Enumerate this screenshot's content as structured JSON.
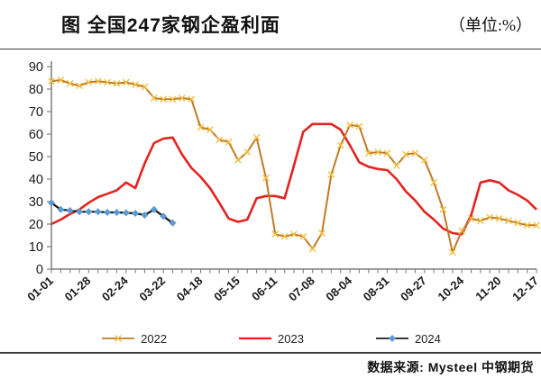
{
  "header": {
    "title": "图 全国247家钢企盈利面",
    "unit": "（单位:%）"
  },
  "footer": {
    "source": "数据来源: Mysteel 中钢期货"
  },
  "legend": {
    "items": [
      {
        "label": "2022",
        "marker": "x"
      },
      {
        "label": "2023",
        "marker": "none"
      },
      {
        "label": "2024",
        "marker": "diamond"
      }
    ]
  },
  "colors": {
    "s2022_line": "#bf7a26",
    "s2022_marker": "#f1bf3e",
    "s2023_line": "#e42320",
    "s2024_line": "#1b1b1b",
    "s2024_marker": "#5b9bd5",
    "axis": "#7f7f7f",
    "tick_text": "#1a1a1a"
  },
  "chart_data": {
    "type": "line",
    "title": "全国247家钢企盈利面",
    "unit": "%",
    "ylim": [
      0,
      90
    ],
    "y_ticks": [
      0,
      10,
      20,
      30,
      40,
      50,
      60,
      70,
      80,
      90
    ],
    "weeks_total": 53,
    "x_tick_labels": [
      "01-01",
      "01-28",
      "02-24",
      "03-22",
      "04-18",
      "05-15",
      "06-11",
      "07-08",
      "08-04",
      "08-31",
      "09-27",
      "10-24",
      "11-20",
      "12-17"
    ],
    "x_tick_label_weeks": [
      0,
      4,
      8,
      12,
      16,
      20,
      24,
      28,
      32,
      36,
      40,
      44,
      48,
      52
    ],
    "grid": false,
    "legend_position": "bottom",
    "series": [
      {
        "name": "2022",
        "marker": "x",
        "values": [
          83.5,
          84,
          82.5,
          81.5,
          83,
          83.5,
          83,
          82.5,
          83,
          82,
          81,
          76,
          75.5,
          75.5,
          76,
          75.5,
          63,
          62,
          57.5,
          56.5,
          48.5,
          52,
          58.5,
          40.5,
          15.5,
          14.5,
          15.5,
          14.5,
          9,
          16,
          42,
          55,
          64,
          63.5,
          51.5,
          52,
          51.5,
          46,
          51,
          51.5,
          48.5,
          38.5,
          26.5,
          7.5,
          17,
          22.5,
          21.5,
          23,
          22.5,
          21.5,
          20.5,
          19.5,
          19.5
        ]
      },
      {
        "name": "2023",
        "marker": "none",
        "values": [
          20,
          22,
          24.5,
          26.5,
          29.5,
          32,
          33.5,
          35,
          38.5,
          36,
          47,
          56,
          58,
          58.5,
          51,
          45,
          41,
          36,
          29.5,
          22.5,
          21,
          22,
          31.5,
          32.5,
          32.5,
          31.5,
          46,
          61,
          64.5,
          64.5,
          64.5,
          62,
          55,
          47.5,
          45.5,
          44.5,
          44,
          40,
          34.5,
          30.5,
          25.5,
          22,
          18,
          16,
          15.5,
          24,
          38.5,
          39.5,
          38.5,
          35,
          33,
          30.5,
          26.5
        ]
      },
      {
        "name": "2024",
        "marker": "diamond",
        "values": [
          29.5,
          26.5,
          26,
          25.5,
          25.5,
          25.5,
          25.2,
          25.2,
          25,
          24.8,
          24,
          26.5,
          23.5,
          20.5
        ]
      }
    ]
  }
}
